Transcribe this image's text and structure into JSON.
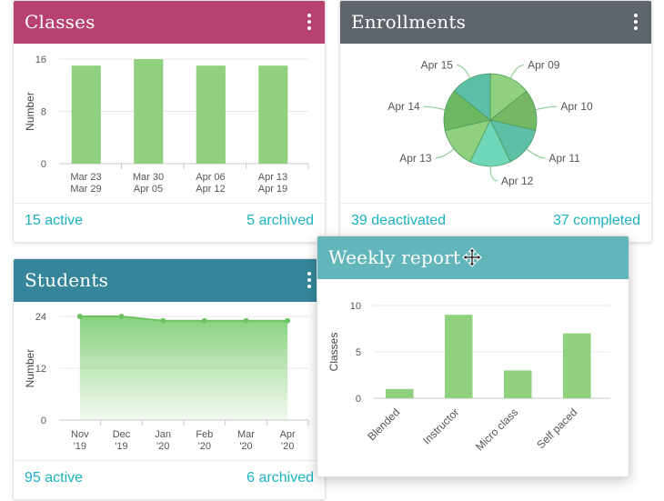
{
  "colors": {
    "classes_header": "#b6426d",
    "enrollments_header": "#5e646b",
    "students_header": "#35869a",
    "weekly_header": "#62b6bb",
    "bar_green": "#8fd17f",
    "link_teal": "#1bb3c0"
  },
  "classes": {
    "title": "Classes",
    "menu_icon": "more-vertical-icon",
    "footer_left": "15 active",
    "footer_right": "5 archived",
    "chart_data": {
      "type": "bar",
      "categories": [
        [
          "Mar 23",
          "Mar 29"
        ],
        [
          "Mar 30",
          "Apr 05"
        ],
        [
          "Apr 06",
          "Apr 12"
        ],
        [
          "Apr 13",
          "Apr 19"
        ]
      ],
      "values": [
        15,
        16,
        15,
        15
      ],
      "ylabel": "Number",
      "yticks": [
        0,
        8,
        16
      ],
      "ylim": [
        0,
        16
      ],
      "grid": true
    }
  },
  "enrollments": {
    "title": "Enrollments",
    "menu_icon": "more-vertical-icon",
    "footer_left": "39 deactivated",
    "footer_right": "37 completed",
    "chart_data": {
      "type": "pie",
      "labels": [
        "Apr 09",
        "Apr 10",
        "Apr 11",
        "Apr 12",
        "Apr 13",
        "Apr 14",
        "Apr 15"
      ],
      "values": [
        1,
        1,
        1,
        1,
        1,
        1,
        1
      ],
      "colors": [
        "#8fd17f",
        "#74b865",
        "#5cbfa6",
        "#6fd6b8",
        "#8fd17f",
        "#6fb862",
        "#5bbfa8"
      ]
    }
  },
  "students": {
    "title": "Students",
    "menu_icon": "more-vertical-icon",
    "footer_left": "95 active",
    "footer_right": "6 archived",
    "chart_data": {
      "type": "area",
      "categories": [
        [
          "Nov",
          "'19"
        ],
        [
          "Dec",
          "'19"
        ],
        [
          "Jan",
          "'20"
        ],
        [
          "Feb",
          "'20"
        ],
        [
          "Mar",
          "'20"
        ],
        [
          "Apr",
          "'20"
        ]
      ],
      "values": [
        24,
        24,
        23,
        23,
        23,
        23
      ],
      "ylabel": "Number",
      "yticks": [
        0,
        12,
        24
      ],
      "ylim": [
        0,
        24
      ],
      "grid": true
    }
  },
  "weekly": {
    "title": "Weekly report",
    "drag_icon": "move-cursor-icon",
    "chart_data": {
      "type": "bar",
      "categories": [
        "Blended",
        "Instructor",
        "Micro class",
        "Self paced"
      ],
      "values": [
        1,
        9,
        3,
        7
      ],
      "ylabel": "Classes",
      "yticks": [
        0,
        5,
        10
      ],
      "ylim": [
        0,
        10
      ],
      "grid": true
    }
  }
}
